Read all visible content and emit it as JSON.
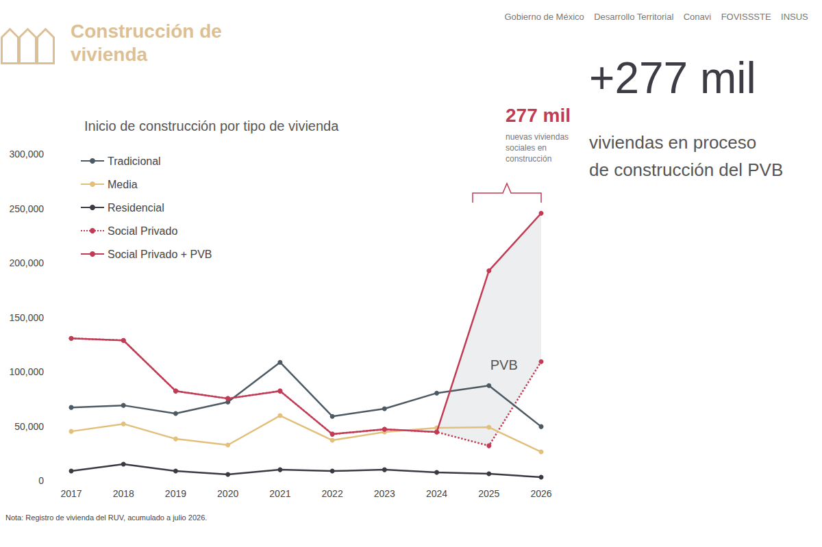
{
  "slide": {
    "title": [
      "Construcción de",
      "vivienda"
    ],
    "header_logos": [
      "Gobierno de México",
      "Desarrollo Territorial",
      "Conavi",
      "FOVISSSTE",
      "INSUS"
    ],
    "headline": "+277 mil",
    "headline_text": [
      "viviendas en proceso",
      "de construcción del PVB"
    ],
    "note": "Nota: Registro de vivienda del RUV, acumulado a julio 2026."
  },
  "chart_data": {
    "type": "line",
    "title": "Inicio de construcción por tipo de vivienda",
    "categories": [
      "2017",
      "2018",
      "2019",
      "2020",
      "2021",
      "2022",
      "2023",
      "2024",
      "2025",
      "2026"
    ],
    "series": [
      {
        "name": "Tradicional",
        "color": "#4d5a63",
        "line_style": "solid",
        "marker": "circle",
        "values": [
          67200,
          69100,
          61600,
          72200,
          108700,
          59000,
          66000,
          80400,
          87300,
          49600
        ]
      },
      {
        "name": "Media",
        "color": "#e2c07c",
        "line_style": "solid",
        "marker": "circle",
        "values": [
          45200,
          52100,
          38300,
          32700,
          59700,
          37100,
          44600,
          48400,
          49000,
          26400
        ]
      },
      {
        "name": "Residencial",
        "color": "#3a3a42",
        "line_style": "solid",
        "marker": "circle",
        "values": [
          8800,
          15100,
          8800,
          5700,
          10000,
          8800,
          10000,
          7500,
          6300,
          3100
        ]
      },
      {
        "name": "Social Privado",
        "color": "#c23b55",
        "line_style": "dotted",
        "marker": "circle",
        "values": [
          130700,
          128800,
          82300,
          75400,
          82300,
          42700,
          47100,
          44600,
          32000,
          109300
        ]
      },
      {
        "name": "Social Privado + PVB",
        "color": "#c23b55",
        "line_style": "solid",
        "marker": "circle",
        "values": [
          130700,
          128800,
          82300,
          75400,
          82300,
          42700,
          47100,
          44600,
          192800,
          245600
        ]
      }
    ],
    "ylim": [
      0,
      300000
    ],
    "yticks": [
      0,
      {
        "value": 50000,
        "label": "50,000"
      },
      {
        "value": 100000,
        "label": "100,000"
      },
      {
        "value": 150000,
        "label": "150,000"
      },
      {
        "value": 200000,
        "label": "200,000"
      },
      {
        "value": 250000,
        "label": "250,000"
      },
      {
        "value": 300000,
        "label": "300,000"
      }
    ],
    "grid": false,
    "legend": "upper left",
    "annotations": {
      "shaded_area": {
        "label": "PVB",
        "between": [
          "Social Privado",
          "Social Privado + PVB"
        ],
        "from": "2024",
        "to": "2026"
      },
      "callout": {
        "value_text": "277 mil",
        "text": [
          "nuevas viviendas",
          "sociales en",
          "construcción"
        ]
      }
    }
  }
}
